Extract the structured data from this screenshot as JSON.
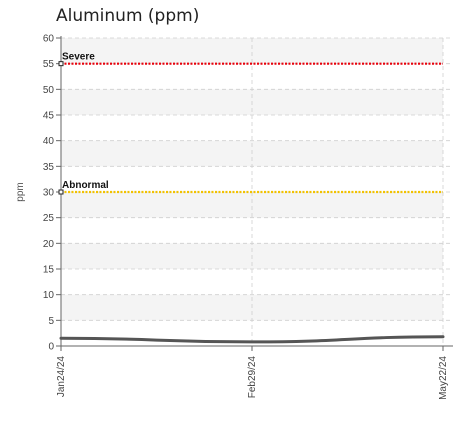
{
  "chart_data": {
    "type": "line",
    "title": "Aluminum (ppm)",
    "ylabel": "ppm",
    "xlabel": "",
    "ylim": [
      0,
      60
    ],
    "yticks": [
      "0",
      "5",
      "10",
      "15",
      "20",
      "25",
      "30",
      "35",
      "40",
      "45",
      "50",
      "55",
      "60"
    ],
    "x": [
      "Jan24/24",
      "Feb29/24",
      "May22/24"
    ],
    "series": [
      {
        "values": [
          1.5,
          0.8,
          1.8
        ],
        "color": "#555555"
      }
    ],
    "thresholds": [
      {
        "label": "Severe",
        "value": 55,
        "color": "#e8000b"
      },
      {
        "label": "Abnormal",
        "value": 30,
        "color": "#f2c200"
      }
    ],
    "grid": true,
    "legend": "none"
  }
}
